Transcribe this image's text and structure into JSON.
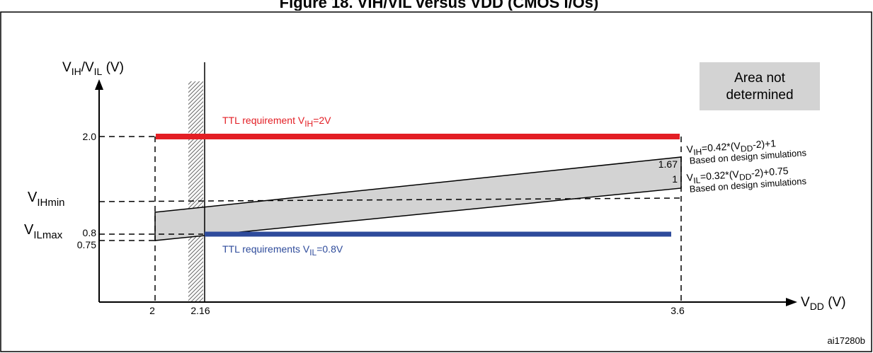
{
  "title_fragment": "Figure 18. VIH/VIL versus VDD (CMOS I/Os)",
  "y_axis": {
    "main": "V",
    "sub1": "IH",
    "slash": "/V",
    "sub2": "IL",
    "unit": " (V)"
  },
  "x_axis": {
    "main": "V",
    "sub": "DD",
    "unit": " (V)"
  },
  "x_ticks": [
    "2",
    "2.16",
    "3.6"
  ],
  "y_ticks": [
    "2.0",
    "0.8",
    "0.75"
  ],
  "side_labels": {
    "vihmin_main": "V",
    "vihmin_sub": "IHmin",
    "vilmax_main": "V",
    "vilmax_sub": "ILmax"
  },
  "legend_box": {
    "line1": "Area not",
    "line2": "determined",
    "color": "#d3d3d3"
  },
  "ttl_vih": {
    "prefix": "TTL requirement  V",
    "sub": "IH",
    "suffix": "=2V",
    "color": "#e31e24"
  },
  "ttl_vil": {
    "prefix": "TTL requirements V",
    "sub": "IL",
    "suffix": "=0.8V",
    "color": "#2e4b9b"
  },
  "right_values": {
    "upper": "1.67",
    "lower": "1"
  },
  "eq_vih": {
    "a": "V",
    "b": "IH",
    "c": "=0.42*(V",
    "d": "DD",
    "e": "-2)+1",
    "note": "Based on design simulations"
  },
  "eq_vil": {
    "a": "V",
    "b": "IL",
    "c": "=0.32*(V",
    "d": "DD",
    "e": "-2)+0.75",
    "note": "Based on design simulations"
  },
  "figure_id": "ai17280b",
  "colors": {
    "band": "#d3d3d3",
    "hatch": "#666666"
  }
}
